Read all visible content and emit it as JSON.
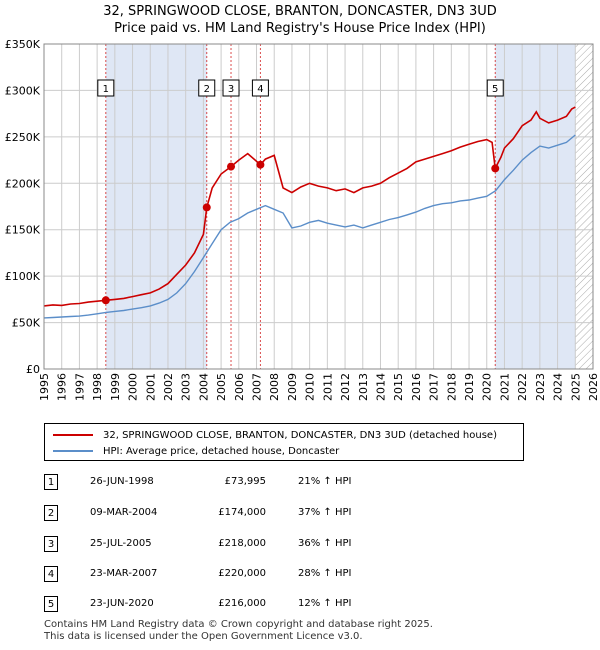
{
  "title_line1": "32, SPRINGWOOD CLOSE, BRANTON, DONCASTER, DN3 3UD",
  "title_line2": "Price paid vs. HM Land Registry's House Price Index (HPI)",
  "legend": {
    "property": "32, SPRINGWOOD CLOSE, BRANTON, DONCASTER, DN3 3UD (detached house)",
    "hpi": "HPI: Average price, detached house, Doncaster"
  },
  "colors": {
    "property": "#cc0000",
    "hpi": "#5b8ec9",
    "shade": "#dfe7f5",
    "marker_border": "#cc0000"
  },
  "transactions": [
    {
      "num": "1",
      "date": "26-JUN-1998",
      "price": "£73,995",
      "hpi": "21% ↑ HPI"
    },
    {
      "num": "2",
      "date": "09-MAR-2004",
      "price": "£174,000",
      "hpi": "37% ↑ HPI"
    },
    {
      "num": "3",
      "date": "25-JUL-2005",
      "price": "£218,000",
      "hpi": "36% ↑ HPI"
    },
    {
      "num": "4",
      "date": "23-MAR-2007",
      "price": "£220,000",
      "hpi": "28% ↑ HPI"
    },
    {
      "num": "5",
      "date": "23-JUN-2020",
      "price": "£216,000",
      "hpi": "12% ↑ HPI"
    }
  ],
  "footer_line1": "Contains HM Land Registry data © Crown copyright and database right 2025.",
  "footer_line2": "This data is licensed under the Open Government Licence v3.0.",
  "chart_data": {
    "type": "line",
    "xlim": [
      1995,
      2026
    ],
    "ylim": [
      0,
      350000
    ],
    "y_ticks": [
      0,
      50000,
      100000,
      150000,
      200000,
      250000,
      300000,
      350000
    ],
    "y_tick_labels": [
      "£0",
      "£50K",
      "£100K",
      "£150K",
      "£200K",
      "£250K",
      "£300K",
      "£350K"
    ],
    "x_ticks": [
      "1995",
      "1996",
      "1997",
      "1998",
      "1999",
      "2000",
      "2001",
      "2002",
      "2003",
      "2004",
      "2005",
      "2006",
      "2007",
      "2008",
      "2009",
      "2010",
      "2011",
      "2012",
      "2013",
      "2014",
      "2015",
      "2016",
      "2017",
      "2018",
      "2019",
      "2020",
      "2021",
      "2022",
      "2023",
      "2024",
      "2025",
      "2026"
    ],
    "grid": true,
    "data_end_hatch_from": 2025.0,
    "shaded_ranges": [
      [
        1998.49,
        2004.19
      ],
      [
        2020.48,
        2025.0
      ]
    ],
    "sale_markers": [
      {
        "label": "1",
        "x": 1998.49,
        "y": 73995
      },
      {
        "label": "2",
        "x": 2004.19,
        "y": 174000
      },
      {
        "label": "3",
        "x": 2005.56,
        "y": 218000
      },
      {
        "label": "4",
        "x": 2007.22,
        "y": 220000
      },
      {
        "label": "5",
        "x": 2020.48,
        "y": 216000
      }
    ],
    "series": [
      {
        "name": "32, SPRINGWOOD CLOSE, BRANTON, DONCASTER, DN3 3UD (detached house)",
        "x": [
          1995.0,
          1995.5,
          1996.0,
          1996.5,
          1997.0,
          1997.5,
          1998.0,
          1998.49,
          1999.0,
          1999.5,
          2000.0,
          2000.5,
          2001.0,
          2001.5,
          2002.0,
          2002.5,
          2003.0,
          2003.5,
          2004.0,
          2004.19,
          2004.5,
          2005.0,
          2005.56,
          2006.0,
          2006.5,
          2007.22,
          2007.5,
          2008.0,
          2008.5,
          2009.0,
          2009.5,
          2010.0,
          2010.5,
          2011.0,
          2011.5,
          2012.0,
          2012.5,
          2013.0,
          2013.5,
          2014.0,
          2014.5,
          2015.0,
          2015.5,
          2016.0,
          2016.5,
          2017.0,
          2017.5,
          2018.0,
          2018.5,
          2019.0,
          2019.5,
          2020.0,
          2020.3,
          2020.48,
          2020.8,
          2021.0,
          2021.5,
          2022.0,
          2022.5,
          2022.8,
          2023.0,
          2023.5,
          2024.0,
          2024.5,
          2024.8,
          2025.0
        ],
        "y": [
          68000,
          69000,
          68500,
          70000,
          70500,
          72000,
          73000,
          73995,
          75000,
          76000,
          78000,
          80000,
          82000,
          86000,
          92000,
          102000,
          112000,
          125000,
          145000,
          174000,
          195000,
          210000,
          218000,
          225000,
          232000,
          220000,
          226000,
          230000,
          195000,
          190000,
          196000,
          200000,
          197000,
          195000,
          192000,
          194000,
          190000,
          195000,
          197000,
          200000,
          206000,
          211000,
          216000,
          223000,
          226000,
          229000,
          232000,
          235000,
          239000,
          242000,
          245000,
          247000,
          244000,
          216000,
          228000,
          238000,
          248000,
          262000,
          268000,
          277000,
          270000,
          265000,
          268000,
          272000,
          280000,
          282000
        ]
      },
      {
        "name": "HPI: Average price, detached house, Doncaster",
        "x": [
          1995.0,
          1995.5,
          1996.0,
          1996.5,
          1997.0,
          1997.5,
          1998.0,
          1998.5,
          1999.0,
          1999.5,
          2000.0,
          2000.5,
          2001.0,
          2001.5,
          2002.0,
          2002.5,
          2003.0,
          2003.5,
          2004.0,
          2004.5,
          2005.0,
          2005.5,
          2006.0,
          2006.5,
          2007.0,
          2007.5,
          2008.0,
          2008.5,
          2009.0,
          2009.5,
          2010.0,
          2010.5,
          2011.0,
          2011.5,
          2012.0,
          2012.5,
          2013.0,
          2013.5,
          2014.0,
          2014.5,
          2015.0,
          2015.5,
          2016.0,
          2016.5,
          2017.0,
          2017.5,
          2018.0,
          2018.5,
          2019.0,
          2019.5,
          2020.0,
          2020.5,
          2021.0,
          2021.5,
          2022.0,
          2022.5,
          2023.0,
          2023.5,
          2024.0,
          2024.5,
          2025.0
        ],
        "y": [
          55000,
          55500,
          56000,
          56500,
          57000,
          58000,
          59500,
          61000,
          62000,
          63000,
          64500,
          66000,
          68000,
          71000,
          75000,
          82000,
          92000,
          105000,
          120000,
          135000,
          150000,
          158000,
          162000,
          168000,
          172000,
          176000,
          172000,
          168000,
          152000,
          154000,
          158000,
          160000,
          157000,
          155000,
          153000,
          155000,
          152000,
          155000,
          158000,
          161000,
          163000,
          166000,
          169000,
          173000,
          176000,
          178000,
          179000,
          181000,
          182000,
          184000,
          186000,
          192000,
          204000,
          214000,
          225000,
          233000,
          240000,
          238000,
          241000,
          244000,
          252000
        ]
      }
    ]
  }
}
